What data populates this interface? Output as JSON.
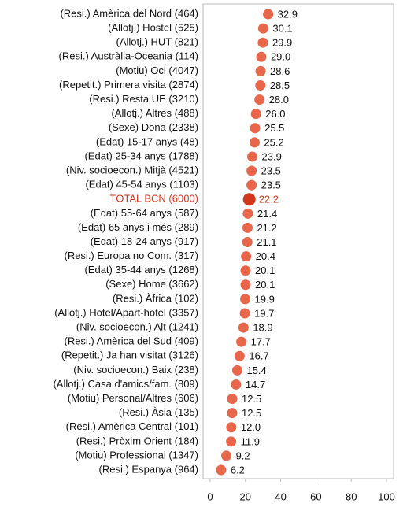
{
  "chart_data": {
    "type": "dot",
    "categories": [
      "(Resi.) Amèrica del Nord (464)",
      "(Allotj.) Hostel (525)",
      "(Allotj.) HUT (821)",
      "(Resi.) Austràlia-Oceania (114)",
      "(Motiu) Oci (4047)",
      "(Repetit.) Primera visita (2874)",
      "(Resi.) Resta UE (3210)",
      "(Allotj.) Altres (488)",
      "(Sexe) Dona (2338)",
      "(Edat) 15-17 anys (48)",
      "(Edat) 25-34 anys (1788)",
      "(Niv. socioecon.) Mitjà (4521)",
      "(Edat) 45-54 anys (1103)",
      "TOTAL BCN (6000)",
      "(Edat) 55-64 anys (587)",
      "(Edat) 65 anys i més (289)",
      "(Edat) 18-24 anys (917)",
      "(Resi.) Europa no Com. (317)",
      "(Edat) 35-44 anys (1268)",
      "(Sexe) Home (3662)",
      "(Resi.) Àfrica (102)",
      "(Allotj.) Hotel/Apart-hotel (3357)",
      "(Niv. socioecon.) Alt (1241)",
      "(Resi.) Amèrica del Sud (409)",
      "(Repetit.) Ja han visitat (3126)",
      "(Niv. socioecon.) Baix (238)",
      "(Allotj.) Casa d'amics/fam. (809)",
      "(Motiu) Personal/Altres (606)",
      "(Resi.) Àsia (135)",
      "(Resi.) Amèrica Central (101)",
      "(Resi.) Pròxim Orient (184)",
      "(Motiu) Professional (1347)",
      "(Resi.) Espanya (964)"
    ],
    "values": [
      32.9,
      30.1,
      29.9,
      29.0,
      28.6,
      28.5,
      28.0,
      26.0,
      25.5,
      25.2,
      23.9,
      23.5,
      23.5,
      22.2,
      21.4,
      21.2,
      21.1,
      20.4,
      20.1,
      20.1,
      19.9,
      19.7,
      18.9,
      17.7,
      16.7,
      15.4,
      14.7,
      12.5,
      12.5,
      12.0,
      11.9,
      9.2,
      6.2
    ],
    "value_labels": [
      "32.9",
      "30.1",
      "29.9",
      "29.0",
      "28.6",
      "28.5",
      "28.0",
      "26.0",
      "25.5",
      "25.2",
      "23.9",
      "23.5",
      "23.5",
      "22.2",
      "21.4",
      "21.2",
      "21.1",
      "20.4",
      "20.1",
      "20.1",
      "19.9",
      "19.7",
      "18.9",
      "17.7",
      "16.7",
      "15.4",
      "14.7",
      "12.5",
      "12.5",
      "12.0",
      "11.9",
      "9.2",
      "6.2"
    ],
    "color": "#e8674b",
    "highlight": 13,
    "highlight_color": "#d2371b",
    "xlim": [
      -4,
      104
    ],
    "xticks": [
      0,
      20,
      40,
      60,
      80,
      100
    ]
  }
}
